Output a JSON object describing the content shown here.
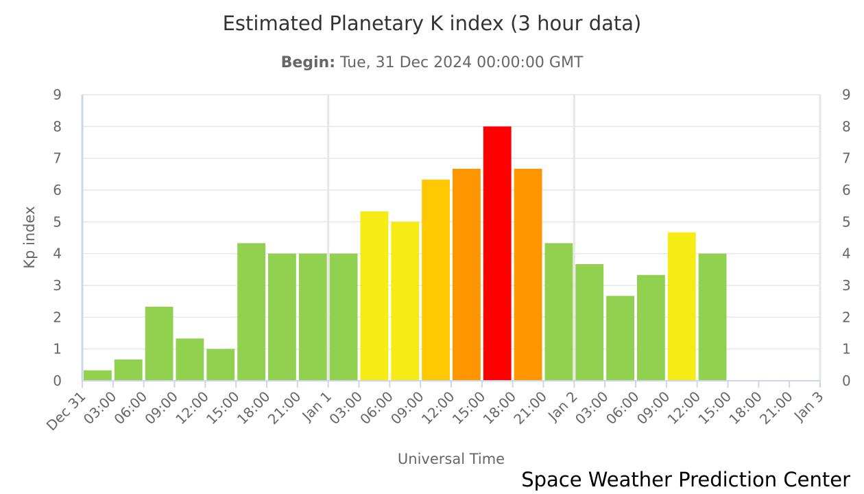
{
  "chart_data": {
    "type": "bar",
    "title": "Estimated Planetary K index (3 hour data)",
    "subtitle_label": "Begin:",
    "subtitle_value": "Tue, 31 Dec 2024 00:00:00 GMT",
    "xlabel": "Universal Time",
    "ylabel": "Kp index",
    "ylim": [
      0,
      9
    ],
    "yticks": [
      0,
      1,
      2,
      3,
      4,
      5,
      6,
      7,
      8,
      9
    ],
    "x_tick_labels": [
      "Dec 31",
      "03:00",
      "06:00",
      "09:00",
      "12:00",
      "15:00",
      "18:00",
      "21:00",
      "Jan 1",
      "03:00",
      "06:00",
      "09:00",
      "12:00",
      "15:00",
      "18:00",
      "21:00",
      "Jan 2",
      "03:00",
      "06:00",
      "09:00",
      "12:00",
      "15:00",
      "18:00",
      "21:00",
      "Jan 3"
    ],
    "grid": true,
    "legend": "none",
    "values": [
      0.33,
      0.67,
      2.33,
      1.33,
      1.0,
      4.33,
      4.0,
      4.0,
      4.0,
      5.33,
      5.0,
      6.33,
      6.67,
      8.0,
      6.67,
      4.33,
      3.67,
      2.67,
      3.33,
      4.67,
      4.0
    ],
    "colors": [
      "#92d050",
      "#92d050",
      "#92d050",
      "#92d050",
      "#92d050",
      "#92d050",
      "#92d050",
      "#92d050",
      "#92d050",
      "#f6eb14",
      "#f6eb14",
      "#ffc800",
      "#ff9600",
      "#ff0000",
      "#ff9600",
      "#92d050",
      "#92d050",
      "#92d050",
      "#92d050",
      "#f6eb14",
      "#92d050"
    ]
  },
  "credit": "Space Weather Prediction Center"
}
